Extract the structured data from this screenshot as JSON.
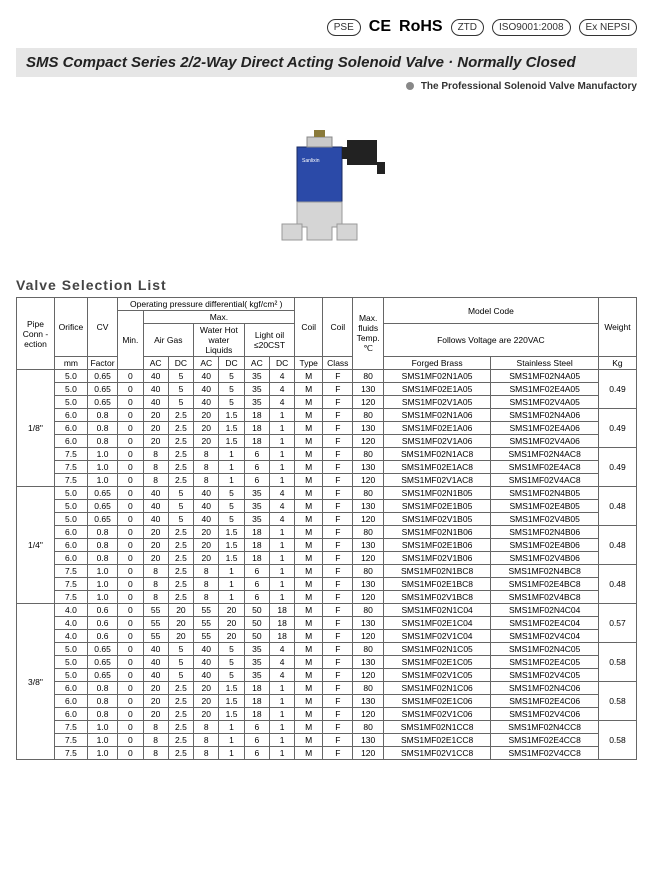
{
  "certs": {
    "ce": "CE",
    "rohs": "RoHS",
    "ztd": "ZTD",
    "iso": "ISO9001:2008",
    "ex": "Ex NEPSI"
  },
  "title": "SMS Compact Series 2/2-Way Direct Acting Solenoid Valve · Normally Closed",
  "subtitle": "The Professional Solenoid Valve Manufactory",
  "list_title": "Valve Selection List",
  "headers": {
    "pipe": "Pipe Conn -ection",
    "orifice": "Orifice",
    "orifice_unit": "mm",
    "cv": "CV",
    "cv2": "Factor",
    "opd": "Operating pressure differential( kgf/cm² )",
    "min": "Min.",
    "max": "Max.",
    "air": "Air Gas",
    "water": "Water Hot water Liquids",
    "oil": "Light oil ≤20CST",
    "ac": "AC",
    "dc": "DC",
    "coil_type": "Coil",
    "coil_type2": "Type",
    "coil_class": "Coil",
    "coil_class2": "Class",
    "temp": "Max. fluids Temp. ℃",
    "model": "Model Code",
    "model2": "Follows Voltage are 220VAC",
    "brass": "Forged Brass",
    "steel": "Stainless Steel",
    "weight": "Weight",
    "weight_unit": "Kg"
  },
  "groups": [
    {
      "pipe": "1/8\"",
      "subgroups": [
        {
          "weight": "0.49",
          "rows": [
            {
              "orifice": "5.0",
              "cv": "0.65",
              "min": "0",
              "aac": "40",
              "adc": "5",
              "wac": "40",
              "wdc": "5",
              "oac": "35",
              "odc": "4",
              "ct": "M",
              "cc": "F",
              "temp": "80",
              "brass": "SMS1MF02N1A05",
              "steel": "SMS1MF02N4A05"
            },
            {
              "orifice": "5.0",
              "cv": "0.65",
              "min": "0",
              "aac": "40",
              "adc": "5",
              "wac": "40",
              "wdc": "5",
              "oac": "35",
              "odc": "4",
              "ct": "M",
              "cc": "F",
              "temp": "130",
              "brass": "SMS1MF02E1A05",
              "steel": "SMS1MF02E4A05"
            },
            {
              "orifice": "5.0",
              "cv": "0.65",
              "min": "0",
              "aac": "40",
              "adc": "5",
              "wac": "40",
              "wdc": "5",
              "oac": "35",
              "odc": "4",
              "ct": "M",
              "cc": "F",
              "temp": "120",
              "brass": "SMS1MF02V1A05",
              "steel": "SMS1MF02V4A05"
            }
          ]
        },
        {
          "weight": "0.49",
          "rows": [
            {
              "orifice": "6.0",
              "cv": "0.8",
              "min": "0",
              "aac": "20",
              "adc": "2.5",
              "wac": "20",
              "wdc": "1.5",
              "oac": "18",
              "odc": "1",
              "ct": "M",
              "cc": "F",
              "temp": "80",
              "brass": "SMS1MF02N1A06",
              "steel": "SMS1MF02N4A06"
            },
            {
              "orifice": "6.0",
              "cv": "0.8",
              "min": "0",
              "aac": "20",
              "adc": "2.5",
              "wac": "20",
              "wdc": "1.5",
              "oac": "18",
              "odc": "1",
              "ct": "M",
              "cc": "F",
              "temp": "130",
              "brass": "SMS1MF02E1A06",
              "steel": "SMS1MF02E4A06"
            },
            {
              "orifice": "6.0",
              "cv": "0.8",
              "min": "0",
              "aac": "20",
              "adc": "2.5",
              "wac": "20",
              "wdc": "1.5",
              "oac": "18",
              "odc": "1",
              "ct": "M",
              "cc": "F",
              "temp": "120",
              "brass": "SMS1MF02V1A06",
              "steel": "SMS1MF02V4A06"
            }
          ]
        },
        {
          "weight": "0.49",
          "rows": [
            {
              "orifice": "7.5",
              "cv": "1.0",
              "min": "0",
              "aac": "8",
              "adc": "2.5",
              "wac": "8",
              "wdc": "1",
              "oac": "6",
              "odc": "1",
              "ct": "M",
              "cc": "F",
              "temp": "80",
              "brass": "SMS1MF02N1AC8",
              "steel": "SMS1MF02N4AC8"
            },
            {
              "orifice": "7.5",
              "cv": "1.0",
              "min": "0",
              "aac": "8",
              "adc": "2.5",
              "wac": "8",
              "wdc": "1",
              "oac": "6",
              "odc": "1",
              "ct": "M",
              "cc": "F",
              "temp": "130",
              "brass": "SMS1MF02E1AC8",
              "steel": "SMS1MF02E4AC8"
            },
            {
              "orifice": "7.5",
              "cv": "1.0",
              "min": "0",
              "aac": "8",
              "adc": "2.5",
              "wac": "8",
              "wdc": "1",
              "oac": "6",
              "odc": "1",
              "ct": "M",
              "cc": "F",
              "temp": "120",
              "brass": "SMS1MF02V1AC8",
              "steel": "SMS1MF02V4AC8"
            }
          ]
        }
      ]
    },
    {
      "pipe": "1/4\"",
      "subgroups": [
        {
          "weight": "0.48",
          "rows": [
            {
              "orifice": "5.0",
              "cv": "0.65",
              "min": "0",
              "aac": "40",
              "adc": "5",
              "wac": "40",
              "wdc": "5",
              "oac": "35",
              "odc": "4",
              "ct": "M",
              "cc": "F",
              "temp": "80",
              "brass": "SMS1MF02N1B05",
              "steel": "SMS1MF02N4B05"
            },
            {
              "orifice": "5.0",
              "cv": "0.65",
              "min": "0",
              "aac": "40",
              "adc": "5",
              "wac": "40",
              "wdc": "5",
              "oac": "35",
              "odc": "4",
              "ct": "M",
              "cc": "F",
              "temp": "130",
              "brass": "SMS1MF02E1B05",
              "steel": "SMS1MF02E4B05"
            },
            {
              "orifice": "5.0",
              "cv": "0.65",
              "min": "0",
              "aac": "40",
              "adc": "5",
              "wac": "40",
              "wdc": "5",
              "oac": "35",
              "odc": "4",
              "ct": "M",
              "cc": "F",
              "temp": "120",
              "brass": "SMS1MF02V1B05",
              "steel": "SMS1MF02V4B05"
            }
          ]
        },
        {
          "weight": "0.48",
          "rows": [
            {
              "orifice": "6.0",
              "cv": "0.8",
              "min": "0",
              "aac": "20",
              "adc": "2.5",
              "wac": "20",
              "wdc": "1.5",
              "oac": "18",
              "odc": "1",
              "ct": "M",
              "cc": "F",
              "temp": "80",
              "brass": "SMS1MF02N1B06",
              "steel": "SMS1MF02N4B06"
            },
            {
              "orifice": "6.0",
              "cv": "0.8",
              "min": "0",
              "aac": "20",
              "adc": "2.5",
              "wac": "20",
              "wdc": "1.5",
              "oac": "18",
              "odc": "1",
              "ct": "M",
              "cc": "F",
              "temp": "130",
              "brass": "SMS1MF02E1B06",
              "steel": "SMS1MF02E4B06"
            },
            {
              "orifice": "6.0",
              "cv": "0.8",
              "min": "0",
              "aac": "20",
              "adc": "2.5",
              "wac": "20",
              "wdc": "1.5",
              "oac": "18",
              "odc": "1",
              "ct": "M",
              "cc": "F",
              "temp": "120",
              "brass": "SMS1MF02V1B06",
              "steel": "SMS1MF02V4B06"
            }
          ]
        },
        {
          "weight": "0.48",
          "rows": [
            {
              "orifice": "7.5",
              "cv": "1.0",
              "min": "0",
              "aac": "8",
              "adc": "2.5",
              "wac": "8",
              "wdc": "1",
              "oac": "6",
              "odc": "1",
              "ct": "M",
              "cc": "F",
              "temp": "80",
              "brass": "SMS1MF02N1BC8",
              "steel": "SMS1MF02N4BC8"
            },
            {
              "orifice": "7.5",
              "cv": "1.0",
              "min": "0",
              "aac": "8",
              "adc": "2.5",
              "wac": "8",
              "wdc": "1",
              "oac": "6",
              "odc": "1",
              "ct": "M",
              "cc": "F",
              "temp": "130",
              "brass": "SMS1MF02E1BC8",
              "steel": "SMS1MF02E4BC8"
            },
            {
              "orifice": "7.5",
              "cv": "1.0",
              "min": "0",
              "aac": "8",
              "adc": "2.5",
              "wac": "8",
              "wdc": "1",
              "oac": "6",
              "odc": "1",
              "ct": "M",
              "cc": "F",
              "temp": "120",
              "brass": "SMS1MF02V1BC8",
              "steel": "SMS1MF02V4BC8"
            }
          ]
        }
      ]
    },
    {
      "pipe": "3/8\"",
      "subgroups": [
        {
          "weight": "0.57",
          "rows": [
            {
              "orifice": "4.0",
              "cv": "0.6",
              "min": "0",
              "aac": "55",
              "adc": "20",
              "wac": "55",
              "wdc": "20",
              "oac": "50",
              "odc": "18",
              "ct": "M",
              "cc": "F",
              "temp": "80",
              "brass": "SMS1MF02N1C04",
              "steel": "SMS1MF02N4C04"
            },
            {
              "orifice": "4.0",
              "cv": "0.6",
              "min": "0",
              "aac": "55",
              "adc": "20",
              "wac": "55",
              "wdc": "20",
              "oac": "50",
              "odc": "18",
              "ct": "M",
              "cc": "F",
              "temp": "130",
              "brass": "SMS1MF02E1C04",
              "steel": "SMS1MF02E4C04"
            },
            {
              "orifice": "4.0",
              "cv": "0.6",
              "min": "0",
              "aac": "55",
              "adc": "20",
              "wac": "55",
              "wdc": "20",
              "oac": "50",
              "odc": "18",
              "ct": "M",
              "cc": "F",
              "temp": "120",
              "brass": "SMS1MF02V1C04",
              "steel": "SMS1MF02V4C04"
            }
          ]
        },
        {
          "weight": "0.58",
          "rows": [
            {
              "orifice": "5.0",
              "cv": "0.65",
              "min": "0",
              "aac": "40",
              "adc": "5",
              "wac": "40",
              "wdc": "5",
              "oac": "35",
              "odc": "4",
              "ct": "M",
              "cc": "F",
              "temp": "80",
              "brass": "SMS1MF02N1C05",
              "steel": "SMS1MF02N4C05"
            },
            {
              "orifice": "5.0",
              "cv": "0.65",
              "min": "0",
              "aac": "40",
              "adc": "5",
              "wac": "40",
              "wdc": "5",
              "oac": "35",
              "odc": "4",
              "ct": "M",
              "cc": "F",
              "temp": "130",
              "brass": "SMS1MF02E1C05",
              "steel": "SMS1MF02E4C05"
            },
            {
              "orifice": "5.0",
              "cv": "0.65",
              "min": "0",
              "aac": "40",
              "adc": "5",
              "wac": "40",
              "wdc": "5",
              "oac": "35",
              "odc": "4",
              "ct": "M",
              "cc": "F",
              "temp": "120",
              "brass": "SMS1MF02V1C05",
              "steel": "SMS1MF02V4C05"
            }
          ]
        },
        {
          "weight": "0.58",
          "rows": [
            {
              "orifice": "6.0",
              "cv": "0.8",
              "min": "0",
              "aac": "20",
              "adc": "2.5",
              "wac": "20",
              "wdc": "1.5",
              "oac": "18",
              "odc": "1",
              "ct": "M",
              "cc": "F",
              "temp": "80",
              "brass": "SMS1MF02N1C06",
              "steel": "SMS1MF02N4C06"
            },
            {
              "orifice": "6.0",
              "cv": "0.8",
              "min": "0",
              "aac": "20",
              "adc": "2.5",
              "wac": "20",
              "wdc": "1.5",
              "oac": "18",
              "odc": "1",
              "ct": "M",
              "cc": "F",
              "temp": "130",
              "brass": "SMS1MF02E1C06",
              "steel": "SMS1MF02E4C06"
            },
            {
              "orifice": "6.0",
              "cv": "0.8",
              "min": "0",
              "aac": "20",
              "adc": "2.5",
              "wac": "20",
              "wdc": "1.5",
              "oac": "18",
              "odc": "1",
              "ct": "M",
              "cc": "F",
              "temp": "120",
              "brass": "SMS1MF02V1C06",
              "steel": "SMS1MF02V4C06"
            }
          ]
        },
        {
          "weight": "0.58",
          "rows": [
            {
              "orifice": "7.5",
              "cv": "1.0",
              "min": "0",
              "aac": "8",
              "adc": "2.5",
              "wac": "8",
              "wdc": "1",
              "oac": "6",
              "odc": "1",
              "ct": "M",
              "cc": "F",
              "temp": "80",
              "brass": "SMS1MF02N1CC8",
              "steel": "SMS1MF02N4CC8"
            },
            {
              "orifice": "7.5",
              "cv": "1.0",
              "min": "0",
              "aac": "8",
              "adc": "2.5",
              "wac": "8",
              "wdc": "1",
              "oac": "6",
              "odc": "1",
              "ct": "M",
              "cc": "F",
              "temp": "130",
              "brass": "SMS1MF02E1CC8",
              "steel": "SMS1MF02E4CC8"
            },
            {
              "orifice": "7.5",
              "cv": "1.0",
              "min": "0",
              "aac": "8",
              "adc": "2.5",
              "wac": "8",
              "wdc": "1",
              "oac": "6",
              "odc": "1",
              "ct": "M",
              "cc": "F",
              "temp": "120",
              "brass": "SMS1MF02V1CC8",
              "steel": "SMS1MF02V4CC8"
            }
          ]
        }
      ]
    }
  ]
}
